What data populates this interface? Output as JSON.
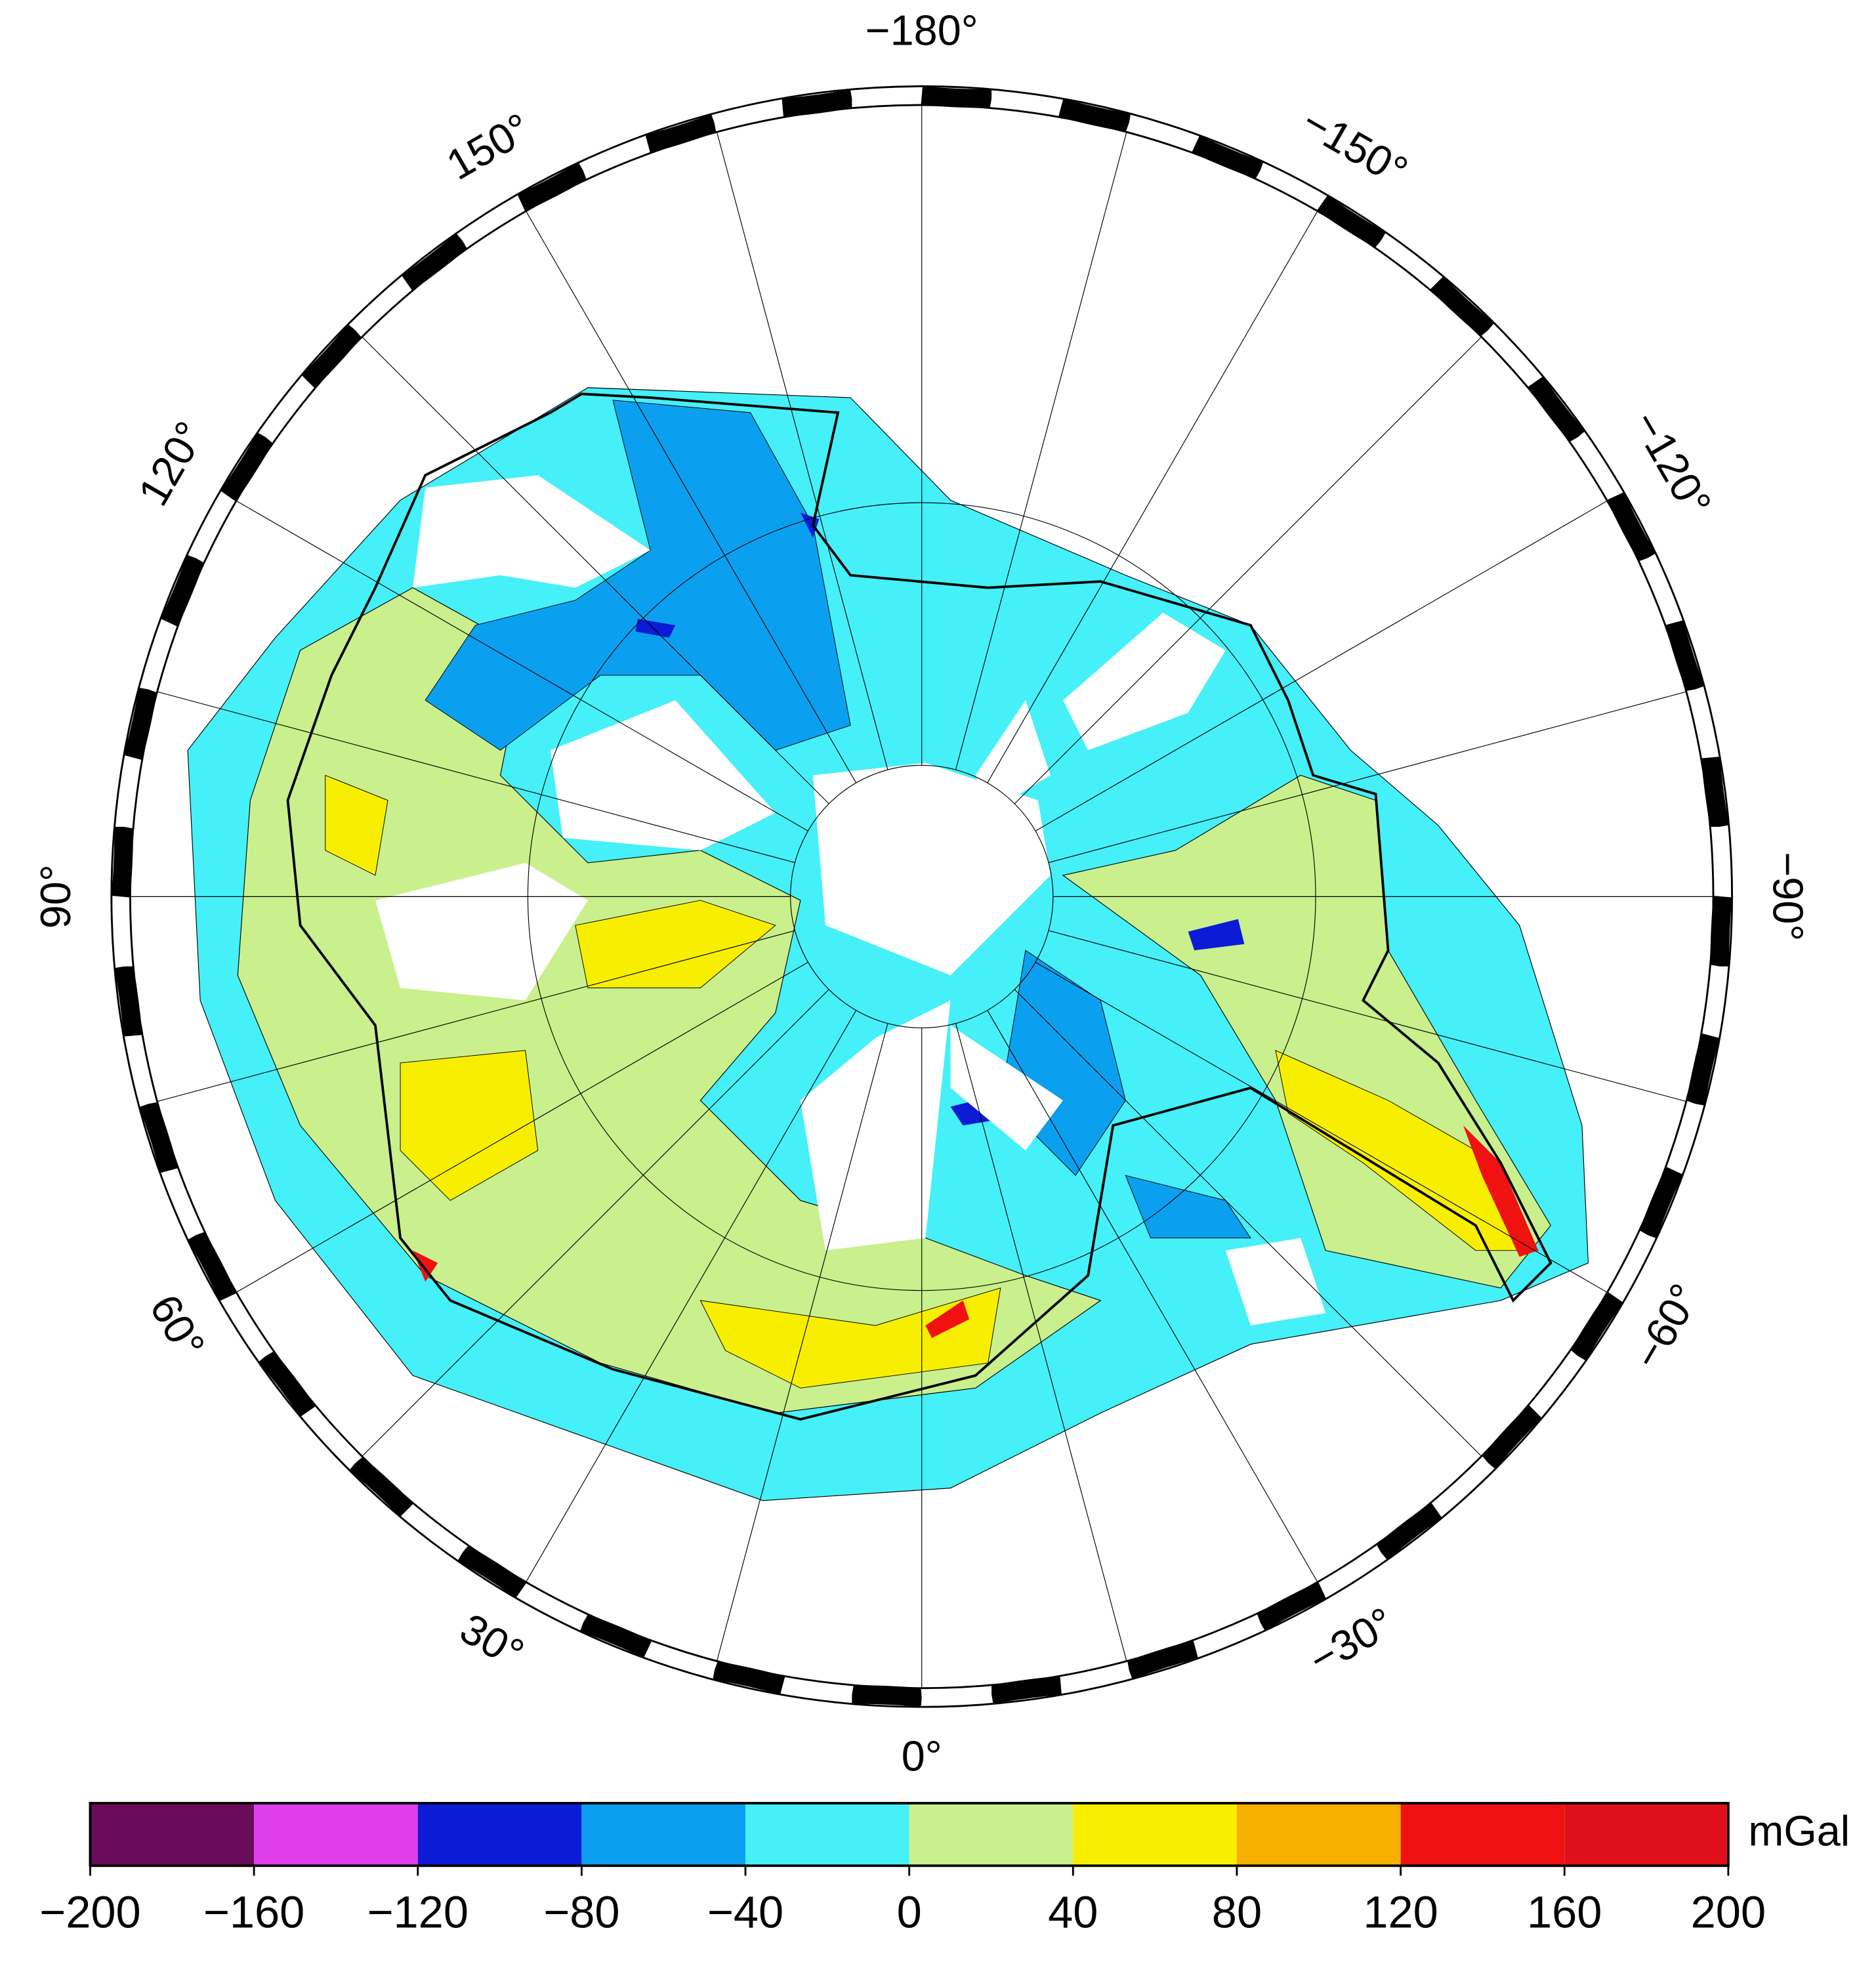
{
  "map": {
    "longitude_labels": [
      {
        "value": -180,
        "label": "−180°"
      },
      {
        "value": -150,
        "label": "−150°"
      },
      {
        "value": -120,
        "label": "−120°"
      },
      {
        "value": -90,
        "label": "−90°"
      },
      {
        "value": -60,
        "label": "−60°"
      },
      {
        "value": -30,
        "label": "−30°"
      },
      {
        "value": 0,
        "label": "0°"
      },
      {
        "value": 30,
        "label": "30°"
      },
      {
        "value": 60,
        "label": "60°"
      },
      {
        "value": 90,
        "label": "90°"
      },
      {
        "value": 120,
        "label": "120°"
      },
      {
        "value": 150,
        "label": "150°"
      }
    ]
  },
  "colorbar": {
    "unit": "mGal",
    "bins": [
      -200,
      -160,
      -120,
      -80,
      -40,
      0,
      40,
      80,
      120,
      160,
      200
    ],
    "colors": [
      "#6b0b5c",
      "#e03ee8",
      "#0b1bd6",
      "#0aa0ef",
      "#45f0f8",
      "#c9f08c",
      "#f8ef00",
      "#f7b000",
      "#f01111",
      "#e0101a"
    ],
    "ticks": [
      {
        "value": -200,
        "label": "−200"
      },
      {
        "value": -160,
        "label": "−160"
      },
      {
        "value": -120,
        "label": "−120"
      },
      {
        "value": -80,
        "label": "−80"
      },
      {
        "value": -40,
        "label": "−40"
      },
      0,
      40,
      80,
      120,
      160,
      200
    ]
  }
}
